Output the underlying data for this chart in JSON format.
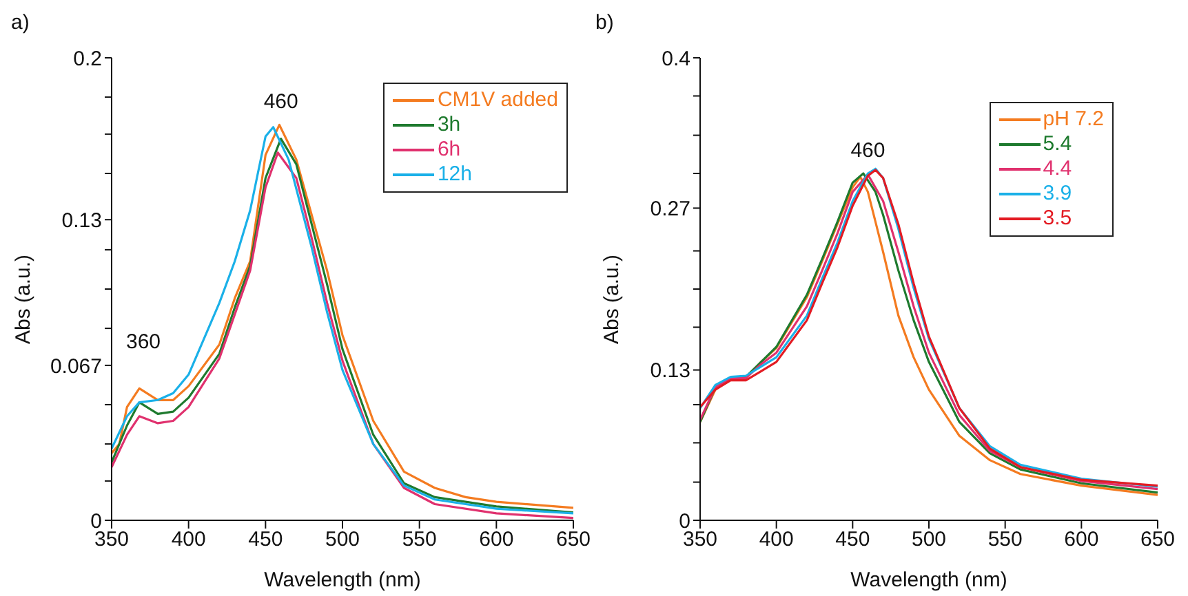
{
  "chart_data": [
    {
      "type": "line",
      "title": "a)",
      "xlabel": "Wavelength (nm)",
      "ylabel": "Abs (a.u.)",
      "xlim": [
        350,
        650
      ],
      "xticks": [
        350,
        400,
        450,
        500,
        550,
        600,
        650
      ],
      "ylim": [
        0,
        0.2
      ],
      "yticks": [
        0,
        {
          "value": 0.017,
          "label": null
        },
        {
          "value": 0.033,
          "label": null
        },
        {
          "value": 0.05,
          "label": null
        },
        0.067,
        {
          "value": 0.083,
          "label": null
        },
        {
          "value": 0.1,
          "label": null
        },
        {
          "value": 0.117,
          "label": null
        },
        0.13,
        {
          "value": 0.15,
          "label": null
        },
        {
          "value": 0.167,
          "label": null
        },
        {
          "value": 0.183,
          "label": null
        },
        0.2
      ],
      "legend": "top right",
      "annotations": [
        "360",
        {
          "text": "460",
          "x": 460,
          "y": 0.171
        }
      ],
      "series": [
        {
          "name": "CM1V added",
          "color": "#f47b20",
          "x": [
            350,
            355,
            360,
            368,
            380,
            390,
            400,
            420,
            430,
            440,
            450,
            459,
            470,
            480,
            490,
            500,
            520,
            540,
            560,
            580,
            600,
            650
          ],
          "values": [
            0.029,
            0.033,
            0.049,
            0.057,
            0.052,
            0.052,
            0.058,
            0.076,
            0.096,
            0.112,
            0.158,
            0.171,
            0.156,
            0.132,
            0.108,
            0.08,
            0.043,
            0.021,
            0.014,
            0.01,
            0.008,
            0.0054
          ]
        },
        {
          "name": "3h",
          "color": "#1e7a2e",
          "x": [
            350,
            360,
            368,
            380,
            390,
            400,
            420,
            430,
            440,
            450,
            460,
            470,
            480,
            490,
            500,
            520,
            540,
            560,
            600,
            650
          ],
          "values": [
            0.025,
            0.041,
            0.051,
            0.046,
            0.047,
            0.053,
            0.072,
            0.092,
            0.11,
            0.148,
            0.165,
            0.154,
            0.128,
            0.102,
            0.074,
            0.037,
            0.016,
            0.01,
            0.006,
            0.0034
          ]
        },
        {
          "name": "6h",
          "color": "#e0316e",
          "x": [
            350,
            360,
            368,
            380,
            390,
            400,
            420,
            430,
            440,
            450,
            458,
            470,
            480,
            490,
            500,
            520,
            540,
            560,
            600,
            650
          ],
          "values": [
            0.023,
            0.037,
            0.045,
            0.042,
            0.043,
            0.049,
            0.07,
            0.089,
            0.108,
            0.144,
            0.159,
            0.148,
            0.122,
            0.094,
            0.069,
            0.033,
            0.014,
            0.007,
            0.003,
            0.001
          ]
        },
        {
          "name": "12h",
          "color": "#1ab0e8",
          "x": [
            350,
            360,
            368,
            380,
            390,
            400,
            420,
            430,
            440,
            450,
            455,
            465,
            480,
            490,
            500,
            520,
            540,
            560,
            600,
            650
          ],
          "values": [
            0.031,
            0.045,
            0.051,
            0.052,
            0.055,
            0.063,
            0.094,
            0.112,
            0.134,
            0.166,
            0.17,
            0.156,
            0.118,
            0.09,
            0.065,
            0.033,
            0.015,
            0.009,
            0.005,
            0.003
          ]
        }
      ]
    },
    {
      "type": "line",
      "title": "b)",
      "xlabel": "Wavelength (nm)",
      "ylabel": "Abs (a.u.)",
      "xlim": [
        350,
        650
      ],
      "xticks": [
        350,
        400,
        450,
        500,
        550,
        600,
        650
      ],
      "ylim": [
        0,
        0.4
      ],
      "yticks": [
        0,
        {
          "value": 0.033,
          "label": null
        },
        {
          "value": 0.067,
          "label": null
        },
        {
          "value": 0.1,
          "label": null
        },
        0.13,
        {
          "value": 0.167,
          "label": null
        },
        {
          "value": 0.2,
          "label": null
        },
        {
          "value": 0.233,
          "label": null
        },
        0.27,
        {
          "value": 0.3,
          "label": null
        },
        {
          "value": 0.333,
          "label": null
        },
        {
          "value": 0.367,
          "label": null
        },
        0.4
      ],
      "legend": "top right",
      "annotations": [
        {
          "text": "460",
          "x": 460,
          "y": 0.3
        }
      ],
      "series": [
        {
          "name": "pH 7.2",
          "color": "#f47b20",
          "x": [
            350,
            360,
            370,
            380,
            390,
            400,
            420,
            430,
            440,
            450,
            455,
            460,
            470,
            480,
            490,
            500,
            520,
            540,
            560,
            600,
            650
          ],
          "values": [
            0.085,
            0.113,
            0.123,
            0.123,
            0.137,
            0.149,
            0.193,
            0.224,
            0.256,
            0.288,
            0.297,
            0.284,
            0.232,
            0.177,
            0.141,
            0.113,
            0.073,
            0.052,
            0.04,
            0.03,
            0.022
          ]
        },
        {
          "name": "5.4",
          "color": "#1e7a2e",
          "x": [
            350,
            360,
            370,
            380,
            390,
            400,
            420,
            430,
            440,
            450,
            457,
            465,
            470,
            480,
            490,
            500,
            520,
            540,
            560,
            600,
            650
          ],
          "values": [
            0.085,
            0.115,
            0.123,
            0.124,
            0.137,
            0.15,
            0.195,
            0.226,
            0.258,
            0.292,
            0.3,
            0.284,
            0.264,
            0.216,
            0.173,
            0.137,
            0.085,
            0.058,
            0.044,
            0.032,
            0.024
          ]
        },
        {
          "name": "4.4",
          "color": "#e0316e",
          "x": [
            350,
            360,
            370,
            380,
            390,
            400,
            420,
            430,
            440,
            450,
            460,
            470,
            480,
            490,
            500,
            520,
            540,
            560,
            600,
            650
          ],
          "values": [
            0.087,
            0.115,
            0.123,
            0.123,
            0.135,
            0.145,
            0.185,
            0.216,
            0.248,
            0.284,
            0.299,
            0.276,
            0.232,
            0.185,
            0.145,
            0.091,
            0.06,
            0.046,
            0.034,
            0.027
          ]
        },
        {
          "name": "3.9",
          "color": "#1ab0e8",
          "x": [
            350,
            360,
            370,
            380,
            390,
            400,
            420,
            430,
            440,
            450,
            460,
            465,
            470,
            480,
            490,
            500,
            520,
            540,
            560,
            600,
            650
          ],
          "values": [
            0.097,
            0.117,
            0.124,
            0.125,
            0.133,
            0.141,
            0.177,
            0.209,
            0.24,
            0.276,
            0.3,
            0.304,
            0.296,
            0.252,
            0.201,
            0.157,
            0.097,
            0.064,
            0.048,
            0.036,
            0.029
          ]
        },
        {
          "name": "3.5",
          "color": "#e31b23",
          "x": [
            350,
            360,
            370,
            380,
            390,
            400,
            420,
            430,
            440,
            450,
            460,
            465,
            470,
            480,
            490,
            500,
            520,
            540,
            560,
            600,
            650
          ],
          "values": [
            0.098,
            0.113,
            0.121,
            0.121,
            0.129,
            0.137,
            0.173,
            0.205,
            0.236,
            0.272,
            0.298,
            0.303,
            0.296,
            0.256,
            0.205,
            0.159,
            0.097,
            0.062,
            0.046,
            0.035,
            0.03
          ]
        }
      ]
    }
  ]
}
